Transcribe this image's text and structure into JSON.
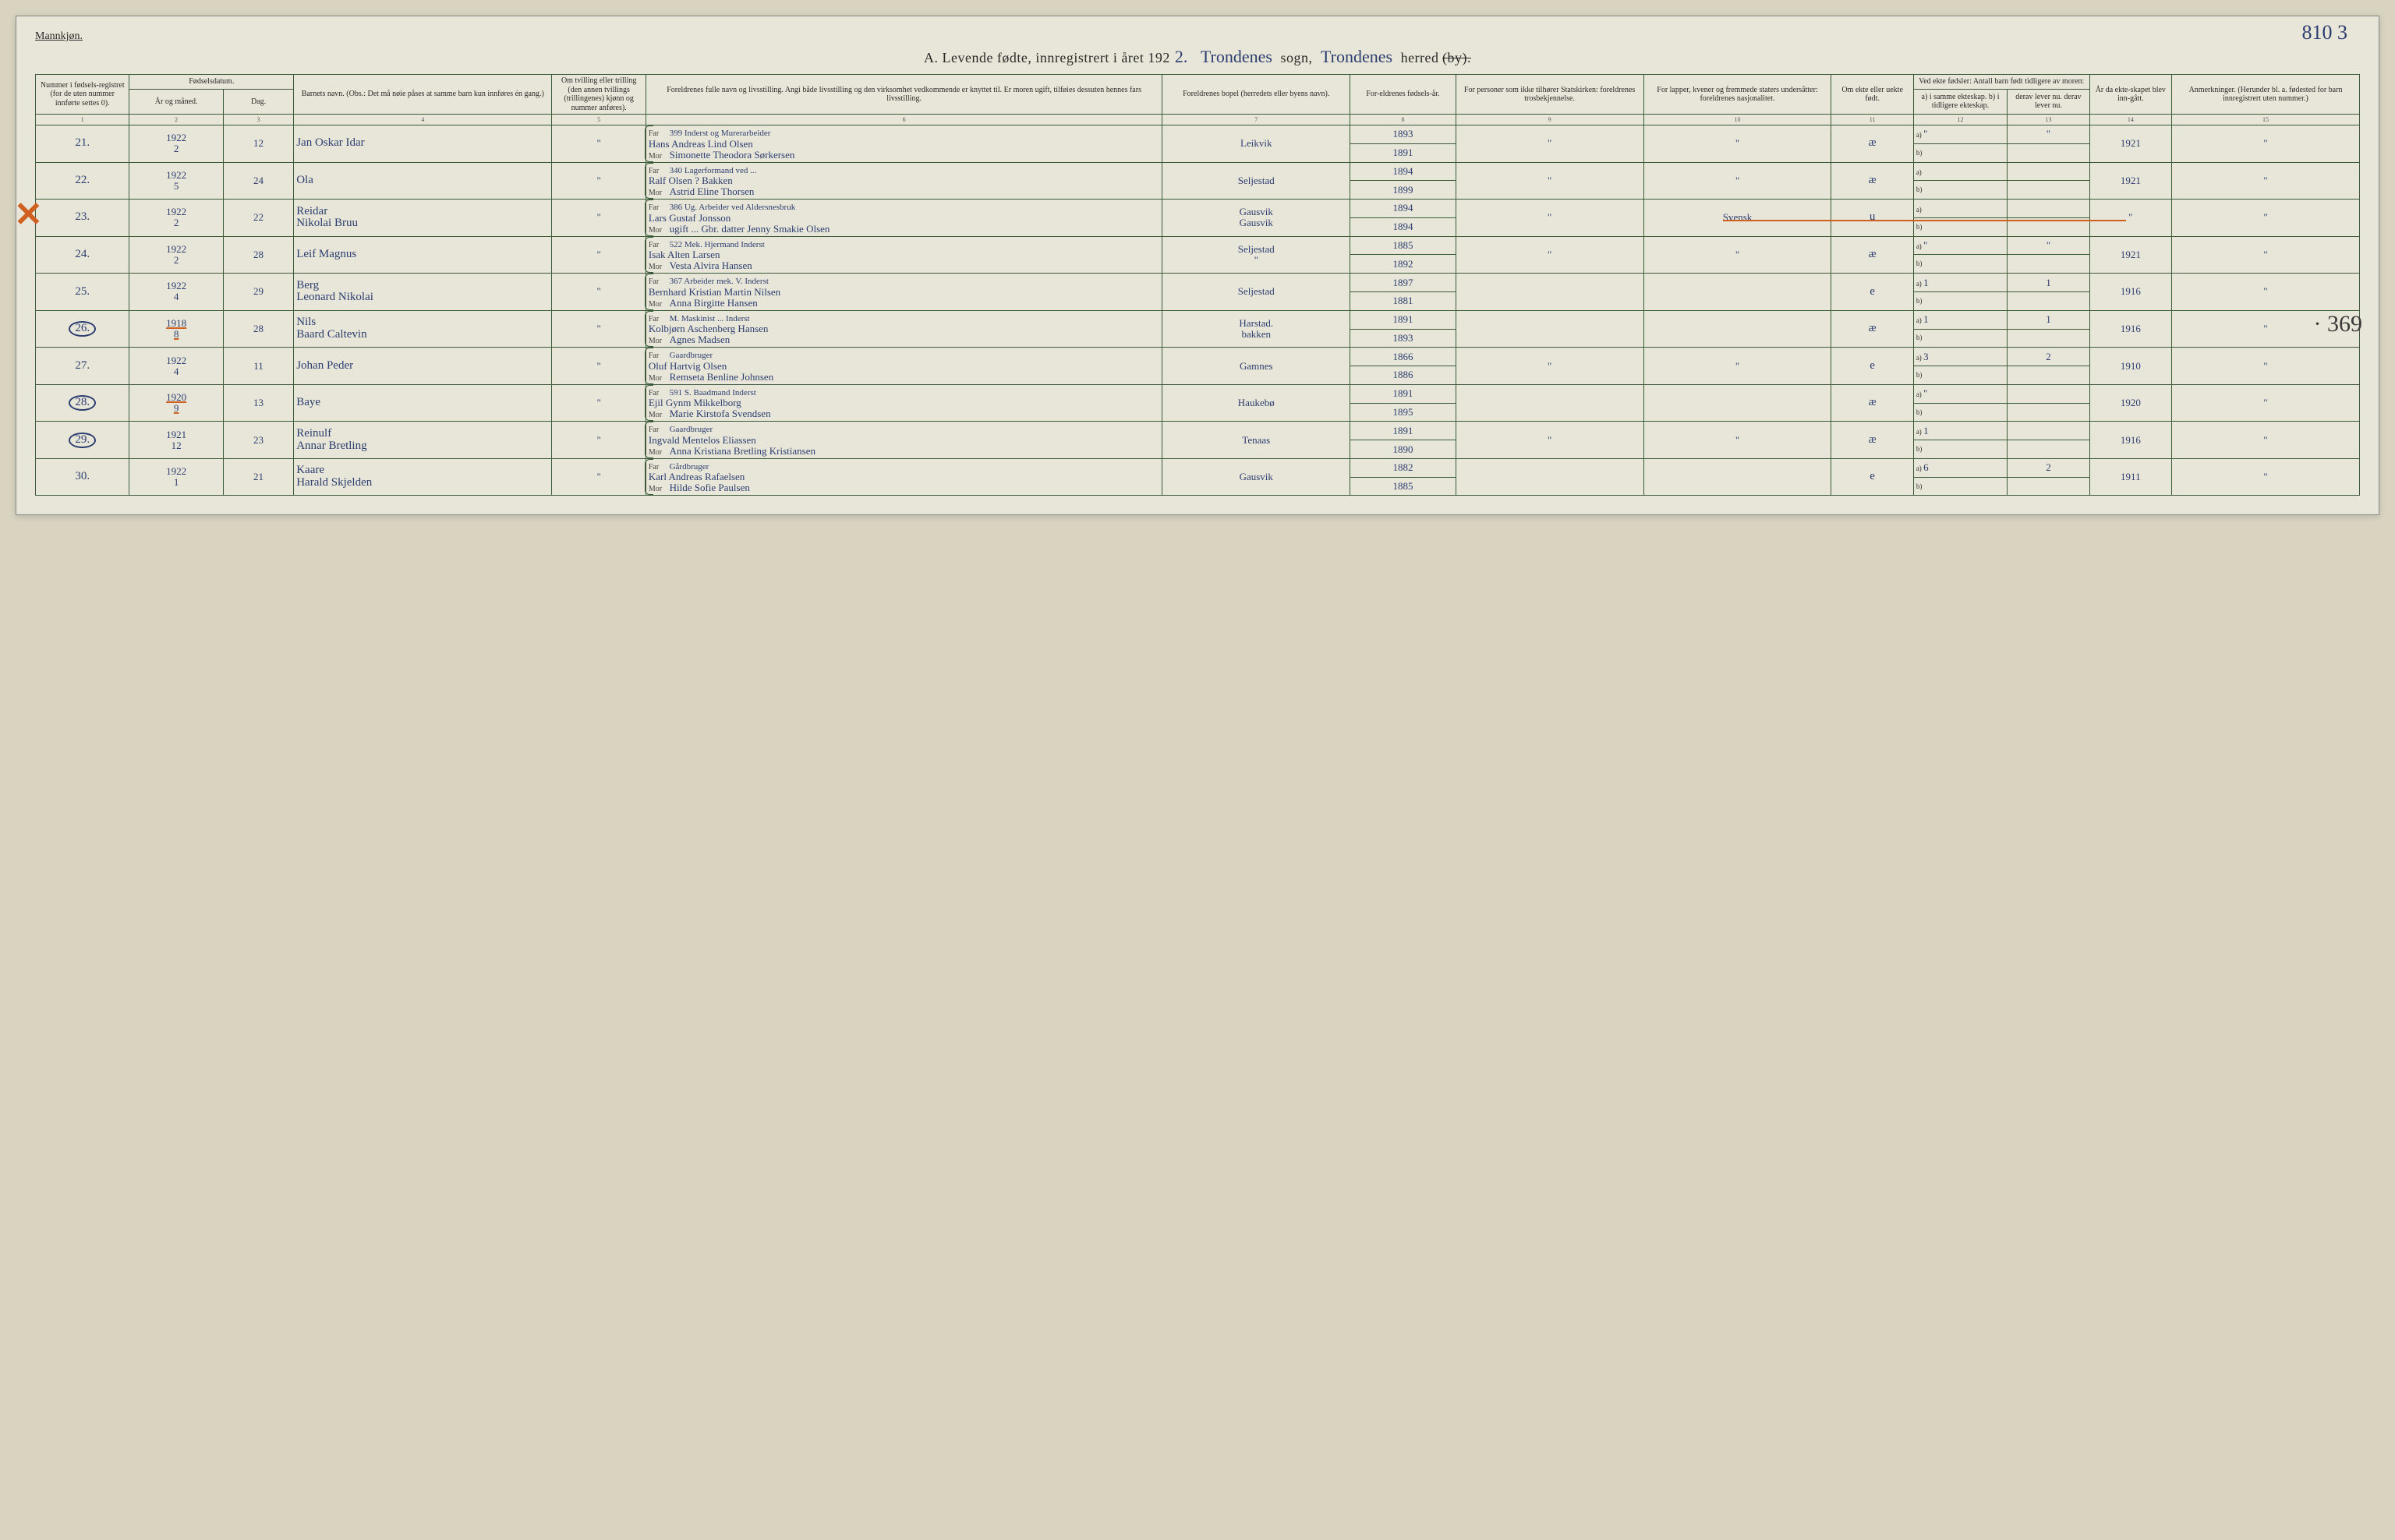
{
  "top_right_annot": "810 3",
  "gender_label": "Mannkjøn.",
  "title": {
    "prefix": "A.  Levende fødte, innregistrert i året 192",
    "year_suffix": "2.",
    "sogn_hand": "Trondenes",
    "sogn_label": "sogn,",
    "herred_hand": "Trondenes",
    "herred_label": "herred",
    "struck": "(by)."
  },
  "headers": {
    "c1": "Nummer i fødsels-registret (for de uten nummer innførte settes 0).",
    "c2_group": "Fødselsdatum.",
    "c2": "År og måned.",
    "c3": "Dag.",
    "c4": "Barnets navn.\n(Obs.: Det må nøie påses at samme barn kun innføres én gang.)",
    "c5": "Om tvilling eller trilling (den annen tvillings (trillingenes) kjønn og nummer anføres).",
    "c6": "Foreldrenes fulle navn og livsstilling.\nAngi både livsstilling og den virksomhet vedkommende er knyttet til. Er moren ugift, tilføies dessuten hennes fars livsstilling.",
    "c7": "Foreldrenes bopel (herredets eller byens navn).",
    "c8": "For-eldrenes fødsels-år.",
    "c9": "For personer som ikke tilhører Statskirken: foreldrenes trosbekjennelse.",
    "c10": "For lapper, kvener og fremmede staters undersåtter: foreldrenes nasjonalitet.",
    "c11": "Om ekte eller uekte født.",
    "c12_group": "Ved ekte fødsler: Antall barn født tidligere av moren:",
    "c12": "a) i samme ekteskap.\nb) i tidligere ekteskap.",
    "c13": "derav lever nu.\nderav lever nu.",
    "c14": "År da ekte-skapet blev inn-gått.",
    "c15": "Anmerkninger.\n(Herunder bl. a. fødested for barn innregistrert uten nummer.)"
  },
  "colnums": [
    "1",
    "2",
    "3",
    "4",
    "5",
    "6",
    "7",
    "8",
    "9",
    "10",
    "11",
    "12",
    "13",
    "14",
    "15"
  ],
  "far_label": "Far",
  "mor_label": "Mor",
  "ab_a": "a)",
  "ab_b": "b)",
  "side_annot_369": "· 369",
  "rows": [
    {
      "num": "21.",
      "ym": "1922\n2",
      "day": "12",
      "child": "Jan Oskar Idar",
      "tw": "\"",
      "far_pre": "399  Inderst og Murerarbeider",
      "far": "Hans Andreas Lind Olsen",
      "mor": "Simonette Theodora Sørkersen",
      "bopel": "Leikvik",
      "fy_far": "1893",
      "fy_mor": "1891",
      "tros": "\"",
      "nat": "\"",
      "ekte": "æ",
      "a": "\"",
      "a2": "\"",
      "aar": "1921",
      "anm": "\""
    },
    {
      "num": "22.",
      "ym": "1922\n5",
      "day": "24",
      "child": "Ola",
      "tw": "\"",
      "far_pre": "340  Lagerformand ved ...",
      "far": "Ralf Olsen ? Bakken",
      "mor": "Astrid Eline Thorsen",
      "bopel": "Seljestad",
      "fy_far": "1894",
      "fy_mor": "1899",
      "tros": "\"",
      "nat": "\"",
      "ekte": "æ",
      "a": "",
      "a2": "",
      "aar": "1921",
      "anm": "\""
    },
    {
      "num": "23.",
      "ym": "1922\n2",
      "day": "22",
      "child": "Reidar\nNikolai Bruu",
      "tw": "\"",
      "far_pre": "386 Ug. Arbeider ved Aldersnesbruk",
      "far": "Lars Gustaf Jonsson",
      "mor": "ugift ... Gbr. datter  Jenny Smakie Olsen",
      "bopel": "Gausvik\nGausvik",
      "fy_far": "1894",
      "fy_mor": "1894",
      "tros": "\"",
      "nat": "Svensk",
      "ekte": "u",
      "a": "",
      "a2": "",
      "aar": "\"",
      "anm": "\"",
      "x_mark": true
    },
    {
      "num": "24.",
      "ym": "1922\n2",
      "day": "28",
      "child": "Leif Magnus",
      "tw": "\"",
      "far_pre": "522 Mek. Hjermand Inderst",
      "far": "Isak Alten Larsen",
      "mor": "Vesta Alvira Hansen",
      "bopel": "Seljestad\n\"",
      "fy_far": "1885",
      "fy_mor": "1892",
      "tros": "\"",
      "nat": "\"",
      "ekte": "æ",
      "a": "\"",
      "a2": "\"",
      "aar": "1921",
      "anm": "\""
    },
    {
      "num": "25.",
      "ym": "1922\n4",
      "day": "29",
      "child": "Berg\nLeonard Nikolai",
      "tw": "\"",
      "far_pre": "367 Arbeider mek. V. Inderst",
      "far": "Bernhard Kristian Martin Nilsen",
      "mor": "Anna Birgitte Hansen",
      "bopel": "Seljestad",
      "fy_far": "1897",
      "fy_mor": "1881",
      "tros": "",
      "nat": "",
      "ekte": "e",
      "a": "1",
      "a2": "1",
      "aar": "1916",
      "anm": "\""
    },
    {
      "num": "26.",
      "ym": "1918\n8",
      "day": "28",
      "child": "Nils\nBaard Caltevin",
      "tw": "\"",
      "far_pre": "M. Maskinist ... Inderst",
      "far": "Kolbjørn Aschenberg Hansen",
      "mor": "Agnes Madsen",
      "bopel": "Harstad.\nbakken",
      "fy_far": "1891",
      "fy_mor": "1893",
      "tros": "",
      "nat": "",
      "ekte": "æ",
      "a": "1",
      "a2": "1",
      "aar": "1916",
      "anm": "\"",
      "circle": true,
      "orange_date": true,
      "side369": true
    },
    {
      "num": "27.",
      "ym": "1922\n4",
      "day": "11",
      "child": "Johan Peder",
      "tw": "\"",
      "far_pre": "Gaardbruger",
      "far": "Oluf Hartvig Olsen",
      "mor": "Remseta Benline Johnsen",
      "bopel": "Gamnes",
      "fy_far": "1866",
      "fy_mor": "1886",
      "tros": "\"",
      "nat": "\"",
      "ekte": "e",
      "a": "3",
      "a2": "2",
      "aar": "1910",
      "anm": "\""
    },
    {
      "num": "28.",
      "ym": "1920\n9",
      "day": "13",
      "child": "Baye",
      "tw": "\"",
      "far_pre": "591 S. Baadmand Inderst",
      "far": "Ejil Gynm Mikkelborg",
      "mor": "Marie Kirstofa Svendsen",
      "bopel": "Haukebø",
      "fy_far": "1891",
      "fy_mor": "1895",
      "tros": "",
      "nat": "",
      "ekte": "æ",
      "a": "\"",
      "a2": "",
      "aar": "1920",
      "anm": "\"",
      "circle": true,
      "orange_date": true
    },
    {
      "num": "29.",
      "ym": "1921\n12",
      "day": "23",
      "child": "Reinulf\nAnnar Bretling",
      "tw": "\"",
      "far_pre": "Gaardbruger",
      "far": "Ingvald Mentelos Eliassen",
      "mor": "Anna Kristiana Bretling Kristiansen",
      "bopel": "Tenaas",
      "fy_far": "1891",
      "fy_mor": "1890",
      "tros": "\"",
      "nat": "\"",
      "ekte": "æ",
      "a": "1",
      "a2": "",
      "aar": "1916",
      "anm": "\"",
      "circle": true
    },
    {
      "num": "30.",
      "ym": "1922\n1",
      "day": "21",
      "child": "Kaare\nHarald Skjelden",
      "tw": "\"",
      "far_pre": "Gårdbruger",
      "far": "Karl Andreas Rafaelsen",
      "mor": "Hilde Sofie Paulsen",
      "bopel": "Gausvik",
      "fy_far": "1882",
      "fy_mor": "1885",
      "tros": "",
      "nat": "",
      "ekte": "e",
      "a": "6",
      "a2": "2",
      "aar": "1911",
      "anm": "\""
    }
  ]
}
